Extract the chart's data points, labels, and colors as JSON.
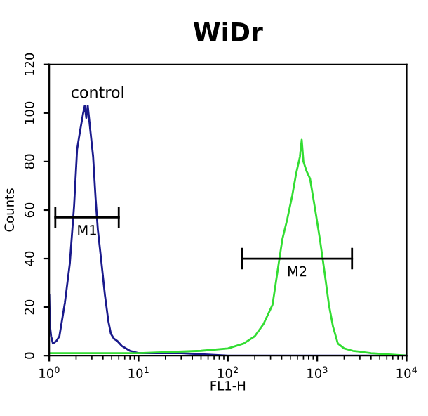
{
  "chart_data": {
    "type": "line",
    "title": "WiDr",
    "xlabel": "FL1-H",
    "ylabel": "Counts",
    "log": "x",
    "grid": false,
    "xlim": [
      1,
      10000
    ],
    "xticks": [
      {
        "value": 1,
        "label": "10$^{0}$"
      },
      {
        "value": 10,
        "label": "10$^{1}$"
      },
      {
        "value": 100,
        "label": "10$^{2}$"
      },
      {
        "value": 1000,
        "label": "10$^{3}$"
      },
      {
        "value": 10000,
        "label": "10$^{4}$"
      }
    ],
    "ylim": [
      0,
      120
    ],
    "yticks": [
      0,
      20,
      40,
      60,
      80,
      100,
      120
    ],
    "annotations": [
      "control"
    ],
    "series": [
      {
        "marker": "none",
        "color": "#1a1a8c",
        "x": [
          1.0,
          1.02,
          1.05,
          1.1,
          1.2,
          1.3,
          1.5,
          1.7,
          1.9,
          2.05,
          2.2,
          2.4,
          2.5,
          2.6,
          2.7,
          2.9,
          3.1,
          3.3,
          3.5,
          3.8,
          4.2,
          4.6,
          4.9,
          5.3,
          5.8,
          6.5,
          8,
          10,
          15,
          30,
          100,
          1000,
          10000
        ],
        "values": [
          25,
          12,
          8,
          5,
          6,
          8,
          22,
          38,
          62,
          85,
          92,
          100,
          103,
          98,
          103,
          92,
          82,
          65,
          52,
          40,
          25,
          14,
          9,
          7,
          6,
          4,
          2,
          1,
          1,
          1,
          0,
          0,
          0
        ]
      },
      {
        "marker": "none",
        "color": "#33dd33",
        "x": [
          1,
          10,
          50,
          100,
          150,
          200,
          250,
          316,
          360,
          407,
          460,
          525,
          580,
          640,
          670,
          700,
          760,
          830,
          950,
          1070,
          1200,
          1350,
          1500,
          1700,
          2000,
          2500,
          4000,
          10000
        ],
        "values": [
          1,
          1,
          2,
          3,
          5,
          8,
          13,
          21,
          35,
          48,
          56,
          66,
          75,
          82,
          89,
          80,
          76,
          73,
          60,
          48,
          35,
          21,
          12,
          5,
          3,
          2,
          1,
          0
        ]
      },
      {
        "marker": "none",
        "name": "M1",
        "color": "#000000",
        "x": [
          1.17,
          6.0
        ],
        "values": [
          57,
          57
        ]
      },
      {
        "marker": "none",
        "name": "M2",
        "color": "#000000",
        "x": [
          145,
          2450
        ],
        "values": [
          40,
          40
        ]
      }
    ]
  }
}
